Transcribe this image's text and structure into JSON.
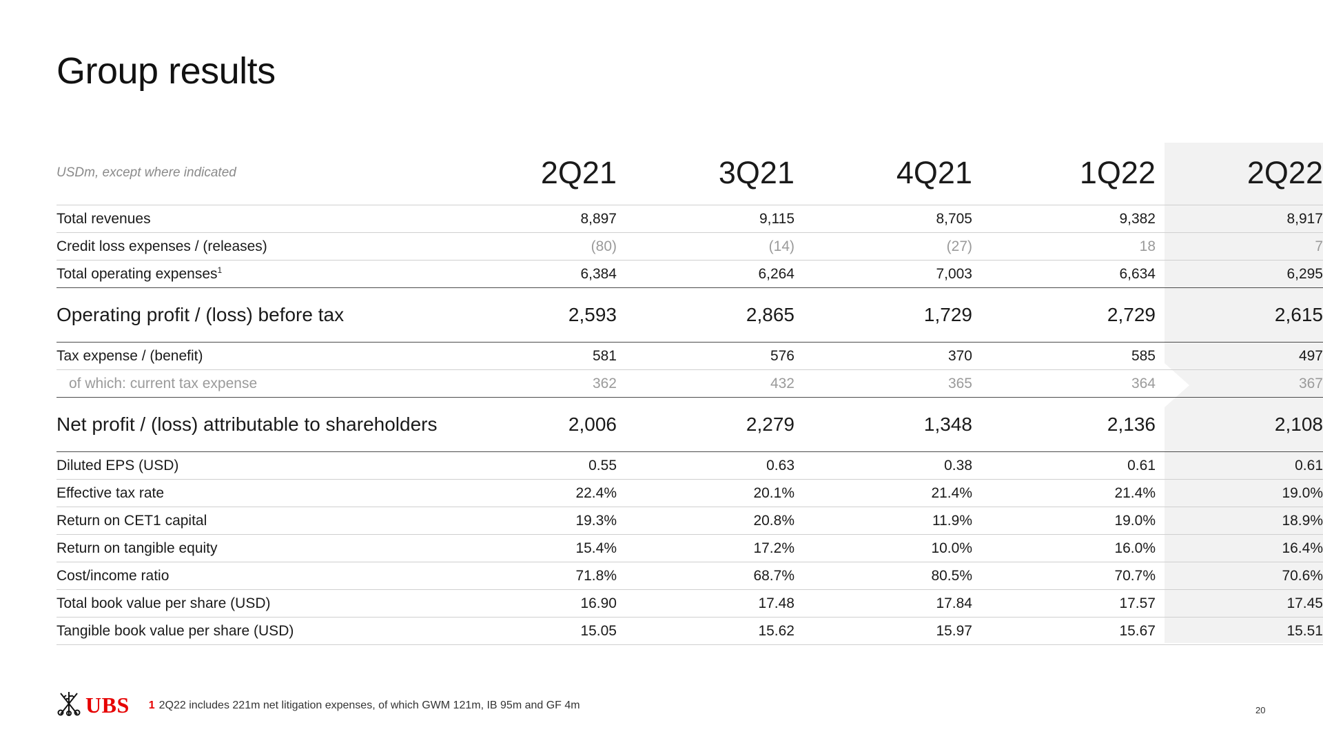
{
  "title": "Group results",
  "table": {
    "unit_label": "USDm, except where indicated",
    "columns": [
      "2Q21",
      "3Q21",
      "4Q21",
      "1Q22",
      "2Q22"
    ],
    "rows": [
      {
        "label": "Total revenues",
        "sup": "",
        "values": [
          "8,897",
          "9,115",
          "8,705",
          "9,382",
          "8,917"
        ]
      },
      {
        "label": "Credit loss expenses / (releases)",
        "sup": "",
        "values": [
          "(80)",
          "(14)",
          "(27)",
          "18",
          "7"
        ]
      },
      {
        "label": "Total operating expenses",
        "sup": "1",
        "values": [
          "6,384",
          "6,264",
          "7,003",
          "6,634",
          "6,295"
        ]
      },
      {
        "label": "Operating profit / (loss) before tax",
        "sup": "",
        "values": [
          "2,593",
          "2,865",
          "1,729",
          "2,729",
          "2,615"
        ]
      },
      {
        "label": "Tax expense / (benefit)",
        "sup": "",
        "values": [
          "581",
          "576",
          "370",
          "585",
          "497"
        ]
      },
      {
        "label": "of which: current tax expense",
        "sup": "",
        "values": [
          "362",
          "432",
          "365",
          "364",
          "367"
        ]
      },
      {
        "label": "Net profit / (loss) attributable to shareholders",
        "sup": "",
        "values": [
          "2,006",
          "2,279",
          "1,348",
          "2,136",
          "2,108"
        ]
      },
      {
        "label": "Diluted EPS (USD)",
        "sup": "",
        "values": [
          "0.55",
          "0.63",
          "0.38",
          "0.61",
          "0.61"
        ]
      },
      {
        "label": "Effective tax rate",
        "sup": "",
        "values": [
          "22.4%",
          "20.1%",
          "21.4%",
          "21.4%",
          "19.0%"
        ]
      },
      {
        "label": "Return on CET1 capital",
        "sup": "",
        "values": [
          "19.3%",
          "20.8%",
          "11.9%",
          "19.0%",
          "18.9%"
        ]
      },
      {
        "label": "Return on tangible equity",
        "sup": "",
        "values": [
          "15.4%",
          "17.2%",
          "10.0%",
          "16.0%",
          "16.4%"
        ]
      },
      {
        "label": "Cost/income ratio",
        "sup": "",
        "values": [
          "71.8%",
          "68.7%",
          "80.5%",
          "70.7%",
          "70.6%"
        ]
      },
      {
        "label": "Total book value per share (USD)",
        "sup": "",
        "values": [
          "16.90",
          "17.48",
          "17.84",
          "17.57",
          "17.45"
        ]
      },
      {
        "label": "Tangible book value per share (USD)",
        "sup": "",
        "values": [
          "15.05",
          "15.62",
          "15.97",
          "15.67",
          "15.51"
        ]
      }
    ]
  },
  "footer": {
    "logo_text": "UBS",
    "footnote_number": "1",
    "footnote_text": "2Q22 includes 221m net litigation expenses, of which GWM 121m, IB 95m and GF 4m",
    "page_number": "20"
  },
  "colors": {
    "brand_red": "#e60000",
    "highlight_column": "#f2f2f2"
  },
  "icons": {
    "logo": "ubs-keys-icon"
  }
}
